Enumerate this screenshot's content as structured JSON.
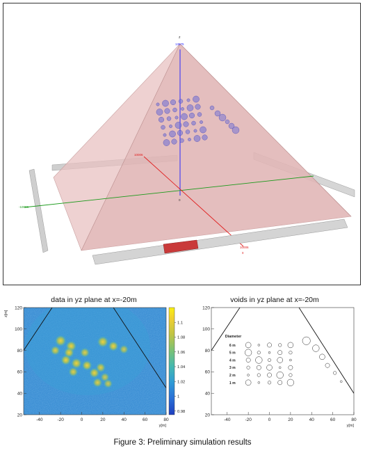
{
  "caption": "Figure 3: Preliminary simulation results",
  "scene3d": {
    "axis_z_name": "z",
    "axis_z_tick": "13675",
    "axis_y_tick": "10006",
    "axis_x_name": "x",
    "axis_x_tick": "10006",
    "origin_label": "0",
    "left_tick": "-10006",
    "colors": {
      "pyramid": "#e7b9b9",
      "zaxis": "#2a2aff",
      "yaxis": "#1a9a1a",
      "xaxis": "#e02020",
      "voids": "#6b6bd6"
    }
  },
  "chart_data": [
    {
      "type": "heatmap",
      "title": "data in yz plane at x=-20m",
      "xlabel": "y[m]",
      "ylabel": "z[m]",
      "xlim": [
        -55,
        80
      ],
      "ylim": [
        20,
        120
      ],
      "xticks": [
        "-40",
        "-20",
        "0",
        "20",
        "40",
        "60",
        "80"
      ],
      "yticks": [
        "20",
        "40",
        "60",
        "80",
        "100",
        "120"
      ],
      "colorbar": {
        "min": 0.975,
        "max": 1.12,
        "ticks": [
          "0.98",
          "1",
          "1.02",
          "1.04",
          "1.06",
          "1.08",
          "1.1"
        ]
      },
      "background_value": 1.0,
      "hotspots": [
        {
          "y": -20,
          "z": 89,
          "v": 1.08
        },
        {
          "y": -10,
          "z": 84,
          "v": 1.07
        },
        {
          "y": 20,
          "z": 88,
          "v": 1.08
        },
        {
          "y": 30,
          "z": 84,
          "v": 1.06
        },
        {
          "y": -25,
          "z": 80,
          "v": 1.05
        },
        {
          "y": -12,
          "z": 78,
          "v": 1.06
        },
        {
          "y": 3,
          "z": 78,
          "v": 1.05
        },
        {
          "y": 40,
          "z": 81,
          "v": 1.04
        },
        {
          "y": -15,
          "z": 71,
          "v": 1.06
        },
        {
          "y": -5,
          "z": 68,
          "v": 1.07
        },
        {
          "y": 5,
          "z": 66,
          "v": 1.06
        },
        {
          "y": 18,
          "z": 64,
          "v": 1.05
        },
        {
          "y": -8,
          "z": 60,
          "v": 1.05
        },
        {
          "y": 12,
          "z": 59,
          "v": 1.06
        },
        {
          "y": 22,
          "z": 55,
          "v": 1.04
        },
        {
          "y": 15,
          "z": 50,
          "v": 1.05
        },
        {
          "y": 25,
          "z": 49,
          "v": 1.04
        }
      ],
      "pyramid_edges": [
        {
          "from": [
            -55,
            80
          ],
          "to": [
            -28,
            120
          ]
        },
        {
          "from": [
            30,
            120
          ],
          "to": [
            80,
            45
          ]
        }
      ]
    },
    {
      "type": "scatter",
      "title": "voids in yz plane at x=-20m",
      "xlabel": "y[m]",
      "ylabel": "z[m]",
      "xlim": [
        -55,
        80
      ],
      "ylim": [
        20,
        120
      ],
      "xticks": [
        "-40",
        "-20",
        "0",
        "20",
        "40",
        "60",
        "80"
      ],
      "yticks": [
        "20",
        "40",
        "60",
        "80",
        "100",
        "120"
      ],
      "legend_title": "Diameter",
      "legend_labels": [
        "6 m",
        "5 m",
        "4 m",
        "3 m",
        "2 m",
        "1 m"
      ],
      "legend_diameters": [
        6,
        5,
        4,
        3,
        2,
        1
      ],
      "pyramid_edges": [
        {
          "from": [
            -55,
            80
          ],
          "to": [
            -28,
            120
          ]
        },
        {
          "from": [
            28,
            120
          ],
          "to": [
            80,
            40
          ]
        }
      ],
      "voids": [
        {
          "y": -20,
          "z": 85,
          "d": 4
        },
        {
          "y": -10,
          "z": 85,
          "d": 1
        },
        {
          "y": 0,
          "z": 85,
          "d": 3
        },
        {
          "y": 10,
          "z": 85,
          "d": 2
        },
        {
          "y": 20,
          "z": 85,
          "d": 4
        },
        {
          "y": -20,
          "z": 78,
          "d": 5
        },
        {
          "y": -10,
          "z": 78,
          "d": 2
        },
        {
          "y": 0,
          "z": 78,
          "d": 1
        },
        {
          "y": 10,
          "z": 78,
          "d": 3
        },
        {
          "y": 20,
          "z": 78,
          "d": 2
        },
        {
          "y": -20,
          "z": 71,
          "d": 3
        },
        {
          "y": -10,
          "z": 71,
          "d": 5
        },
        {
          "y": 0,
          "z": 71,
          "d": 2
        },
        {
          "y": 10,
          "z": 71,
          "d": 4
        },
        {
          "y": 20,
          "z": 71,
          "d": 1
        },
        {
          "y": -20,
          "z": 64,
          "d": 2
        },
        {
          "y": -10,
          "z": 64,
          "d": 3
        },
        {
          "y": 0,
          "z": 64,
          "d": 4
        },
        {
          "y": 10,
          "z": 64,
          "d": 1
        },
        {
          "y": 20,
          "z": 64,
          "d": 3
        },
        {
          "y": -20,
          "z": 57,
          "d": 1
        },
        {
          "y": -10,
          "z": 57,
          "d": 2
        },
        {
          "y": 0,
          "z": 57,
          "d": 3
        },
        {
          "y": 10,
          "z": 57,
          "d": 5
        },
        {
          "y": 20,
          "z": 57,
          "d": 2
        },
        {
          "y": -20,
          "z": 50,
          "d": 4
        },
        {
          "y": -10,
          "z": 50,
          "d": 1
        },
        {
          "y": 0,
          "z": 50,
          "d": 2
        },
        {
          "y": 10,
          "z": 50,
          "d": 3
        },
        {
          "y": 20,
          "z": 50,
          "d": 5
        },
        {
          "y": 35,
          "z": 89,
          "d": 6
        },
        {
          "y": 44,
          "z": 82,
          "d": 5
        },
        {
          "y": 50,
          "z": 74,
          "d": 4
        },
        {
          "y": 55,
          "z": 66,
          "d": 3
        },
        {
          "y": 62,
          "z": 59,
          "d": 2
        },
        {
          "y": 68,
          "z": 51,
          "d": 1
        }
      ]
    }
  ]
}
